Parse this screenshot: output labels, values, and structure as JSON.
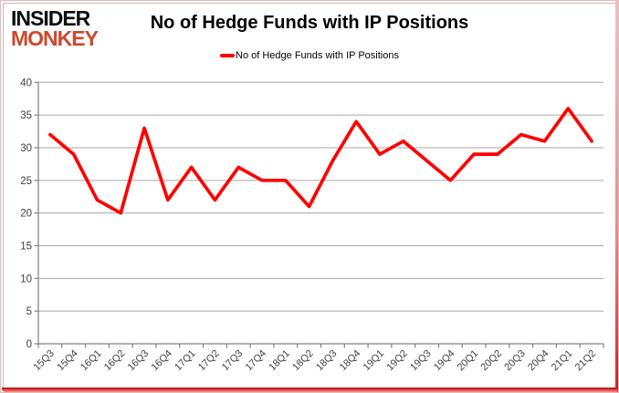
{
  "logo": {
    "line1": "INSIDER",
    "line2": "MONKEY",
    "line1_color": "#0d0d0d",
    "line2_color": "#cc4830"
  },
  "header": {
    "title": "No of Hedge Funds with IP Positions"
  },
  "legend": {
    "label": "No of Hedge Funds with IP Positions",
    "marker_color": "#ff0000"
  },
  "chart_data": {
    "type": "line",
    "title": "No of Hedge Funds with IP Positions",
    "categories": [
      "15Q3",
      "15Q4",
      "16Q1",
      "16Q2",
      "16Q3",
      "16Q4",
      "17Q1",
      "17Q2",
      "17Q3",
      "17Q4",
      "18Q1",
      "18Q2",
      "18Q3",
      "18Q4",
      "19Q1",
      "19Q2",
      "19Q3",
      "19Q4",
      "20Q1",
      "20Q2",
      "20Q3",
      "20Q4",
      "21Q1",
      "21Q2"
    ],
    "series": [
      {
        "name": "No of Hedge Funds with IP Positions",
        "color": "#ff0000",
        "values": [
          32,
          29,
          22,
          20,
          33,
          22,
          27,
          22,
          27,
          25,
          25,
          21,
          28,
          34,
          29,
          31,
          28,
          25,
          29,
          29,
          32,
          31,
          36,
          31
        ]
      }
    ],
    "xlabel": "",
    "ylabel": "",
    "ylim": [
      0,
      40
    ],
    "yticks": [
      0,
      5,
      10,
      15,
      20,
      25,
      30,
      35,
      40
    ],
    "grid": "horizontal",
    "legend_position": "top",
    "x_label_rotation": -45,
    "colors": {
      "gridline": "#a6a6a6",
      "axis": "#808080",
      "tick_label": "#404040",
      "background": "#ffffff"
    }
  }
}
